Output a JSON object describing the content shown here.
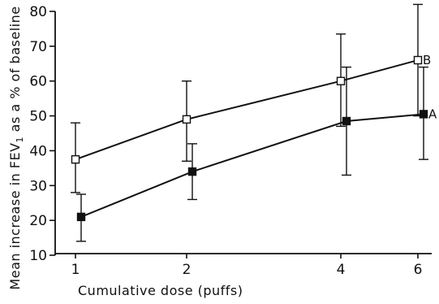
{
  "chart_data": {
    "type": "line",
    "title": "",
    "xlabel": "Cumulative dose (puffs)",
    "ylabel": "Mean increase in FEV1 as a % of baseline",
    "ylabel_main": "Mean increase in FEV",
    "ylabel_subscript": "1",
    "ylabel_rest": " as a % of baseline",
    "x_ticks": [
      "1",
      "2",
      "4",
      "6"
    ],
    "y_ticks": [
      "10",
      "20",
      "30",
      "40",
      "50",
      "60",
      "70",
      "80"
    ],
    "ylim": [
      10,
      80
    ],
    "grid": false,
    "series": [
      {
        "name": "B",
        "marker": "open-square",
        "x": [
          "1",
          "2",
          "4",
          "6"
        ],
        "values": [
          37.5,
          49,
          60,
          66
        ],
        "error_low": [
          28,
          37,
          47,
          50
        ],
        "error_high": [
          48,
          60,
          73.5,
          82
        ]
      },
      {
        "name": "A",
        "marker": "filled-square",
        "x": [
          "1",
          "2",
          "4",
          "6"
        ],
        "values": [
          21,
          34,
          48.5,
          50.5
        ],
        "error_low": [
          14,
          26,
          33,
          37.5
        ],
        "error_high": [
          27.5,
          42,
          64,
          64
        ]
      }
    ]
  }
}
